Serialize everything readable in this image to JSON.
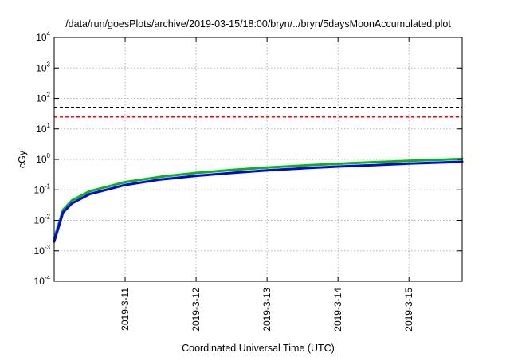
{
  "chart_data": {
    "type": "line",
    "title": "/data/run/goesPlots/archive/2019-03-15/18:00/bryn/../bryn/5daysMoonAccumulated.plot",
    "xlabel": "Coordinated Universal Time (UTC)",
    "ylabel": "cGy",
    "yscale": "log",
    "ylim": [
      0.0001,
      10000
    ],
    "xlim": [
      "2019-03-10 00:00",
      "2019-03-15 18:00"
    ],
    "y_ticks": [
      {
        "base": "10",
        "exp": "-4"
      },
      {
        "base": "10",
        "exp": "-3"
      },
      {
        "base": "10",
        "exp": "-2"
      },
      {
        "base": "10",
        "exp": "-1"
      },
      {
        "base": "10",
        "exp": "0"
      },
      {
        "base": "10",
        "exp": "1"
      },
      {
        "base": "10",
        "exp": "2"
      },
      {
        "base": "10",
        "exp": "3"
      },
      {
        "base": "10",
        "exp": "4"
      }
    ],
    "x_ticks": [
      "2019-3-11",
      "2019-3-12",
      "2019-3-13",
      "2019-3-14",
      "2019-3-15"
    ],
    "grid": true,
    "thresholds": [
      {
        "value": 50,
        "color": "#000000",
        "style": "dashed"
      },
      {
        "value": 25,
        "color": "#ff0000",
        "style": "dashed"
      }
    ],
    "series": [
      {
        "color": "#00bb00",
        "x": [
          "2019-03-10 00:00",
          "2019-03-10 03:00",
          "2019-03-10 06:00",
          "2019-03-10 12:00",
          "2019-03-11 00:00",
          "2019-03-11 12:00",
          "2019-03-12 00:00",
          "2019-03-12 12:00",
          "2019-03-13 00:00",
          "2019-03-13 12:00",
          "2019-03-14 00:00",
          "2019-03-14 12:00",
          "2019-03-15 00:00",
          "2019-03-15 12:00",
          "2019-03-15 18:00"
        ],
        "values": [
          0.0025,
          0.022,
          0.045,
          0.09,
          0.18,
          0.27,
          0.36,
          0.45,
          0.54,
          0.63,
          0.72,
          0.81,
          0.9,
          0.99,
          1.04
        ]
      },
      {
        "color": "#0000ff",
        "x": [
          "2019-03-10 00:00",
          "2019-03-10 03:00",
          "2019-03-10 06:00",
          "2019-03-10 12:00",
          "2019-03-11 00:00",
          "2019-03-11 12:00",
          "2019-03-12 00:00",
          "2019-03-12 12:00",
          "2019-03-13 00:00",
          "2019-03-13 12:00",
          "2019-03-14 00:00",
          "2019-03-14 12:00",
          "2019-03-15 00:00",
          "2019-03-15 12:00",
          "2019-03-15 18:00"
        ],
        "values": [
          0.002,
          0.018,
          0.036,
          0.073,
          0.145,
          0.22,
          0.29,
          0.36,
          0.435,
          0.51,
          0.58,
          0.65,
          0.725,
          0.8,
          0.84
        ]
      }
    ]
  }
}
